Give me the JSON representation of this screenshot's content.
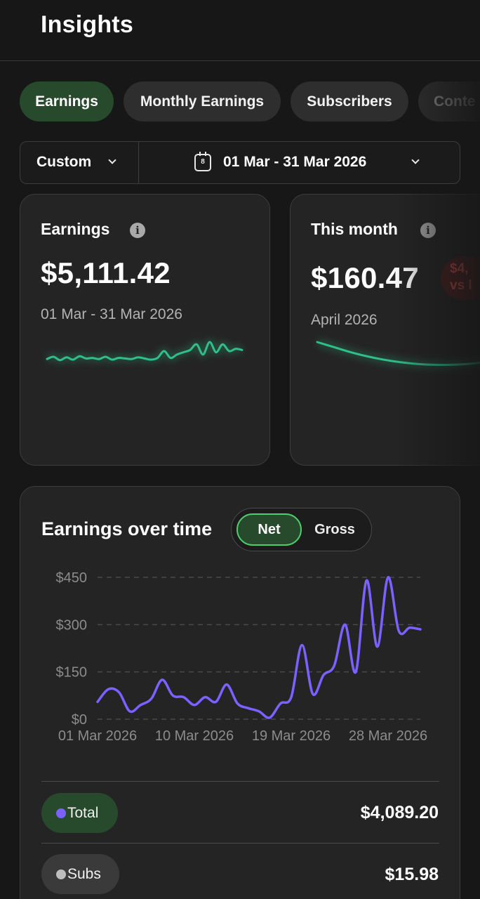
{
  "header": {
    "title": "Insights"
  },
  "tabs": [
    {
      "label": "Earnings",
      "active": true
    },
    {
      "label": "Monthly Earnings",
      "active": false
    },
    {
      "label": "Subscribers",
      "active": false
    },
    {
      "label": "Conte",
      "active": false
    }
  ],
  "filter": {
    "mode_label": "Custom",
    "calendar_day": "8",
    "date_range": "01 Mar - 31 Mar 2026"
  },
  "cards": [
    {
      "title": "Earnings",
      "value": "$5,111.42",
      "subtitle": "01 Mar - 31 Mar 2026"
    },
    {
      "title": "This month",
      "value": "$160.47",
      "subtitle": "April 2026",
      "badge_line1": "$4,",
      "badge_line2": "vs l"
    }
  ],
  "earnings_over_time": {
    "title": "Earnings over time",
    "toggle": {
      "net": "Net",
      "gross": "Gross",
      "selected": "Net"
    },
    "line_color": "#7b61ff",
    "breakdown": [
      {
        "label": "Total",
        "value": "$4,089.20",
        "dot_color": "#7b61ff",
        "pill_color": "#274a2d"
      },
      {
        "label": "Subs",
        "value": "$15.98",
        "dot_color": "#bdbdbd",
        "pill_color": "#3a3a3a"
      }
    ]
  },
  "chart_data": {
    "type": "line",
    "x_ticks": [
      "01 Mar 2026",
      "10 Mar 2026",
      "19 Mar 2026",
      "28 Mar 2026"
    ],
    "y_ticks": [
      "$0",
      "$150",
      "$300",
      "$450"
    ],
    "ylim": [
      0,
      450
    ],
    "grid": true,
    "x_start": "2026-03-01",
    "x_end": "2026-03-31",
    "series": [
      {
        "color": "#7b61ff",
        "x": [
          "2026-03-01",
          "2026-03-02",
          "2026-03-03",
          "2026-03-04",
          "2026-03-05",
          "2026-03-06",
          "2026-03-07",
          "2026-03-08",
          "2026-03-09",
          "2026-03-10",
          "2026-03-11",
          "2026-03-12",
          "2026-03-13",
          "2026-03-14",
          "2026-03-15",
          "2026-03-16",
          "2026-03-17",
          "2026-03-18",
          "2026-03-19",
          "2026-03-20",
          "2026-03-21",
          "2026-03-22",
          "2026-03-23",
          "2026-03-24",
          "2026-03-25",
          "2026-03-26",
          "2026-03-27",
          "2026-03-28",
          "2026-03-29",
          "2026-03-30",
          "2026-03-31"
        ],
        "values": [
          55,
          95,
          85,
          25,
          45,
          65,
          125,
          75,
          70,
          45,
          70,
          55,
          110,
          50,
          35,
          25,
          5,
          50,
          70,
          235,
          80,
          140,
          170,
          300,
          150,
          440,
          230,
          450,
          280,
          290,
          285
        ]
      }
    ]
  },
  "mini_charts": [
    {
      "color": "#2fbf8a",
      "values": [
        22,
        26,
        20,
        25,
        21,
        27,
        23,
        24,
        22,
        26,
        21,
        24,
        23,
        22,
        25,
        23,
        21,
        24,
        36,
        24,
        30,
        34,
        38,
        48,
        30,
        52,
        34,
        48,
        36,
        40,
        38
      ]
    },
    {
      "color": "#2fbf8a",
      "values": [
        50,
        44,
        38,
        33,
        29,
        26,
        24,
        23,
        23,
        24,
        26,
        29
      ]
    }
  ]
}
